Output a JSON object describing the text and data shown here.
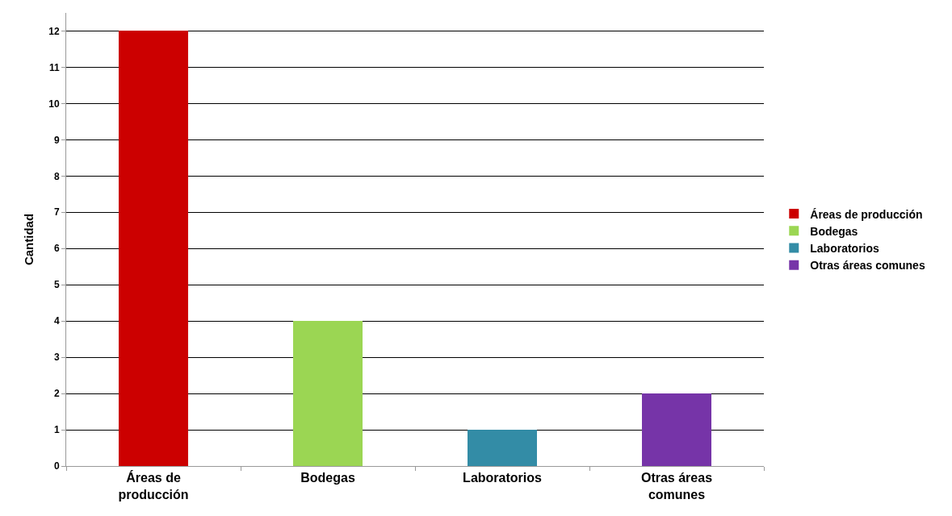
{
  "chart_data": {
    "type": "bar",
    "ylabel": "Cantidad",
    "categories": [
      "Áreas de producción",
      "Bodegas",
      "Laboratorios",
      "Otras áreas comunes"
    ],
    "series": [
      {
        "name": "Áreas de producción",
        "color": "#cc0000",
        "values": [
          12,
          null,
          null,
          null
        ]
      },
      {
        "name": "Bodegas",
        "color": "#9bd653",
        "values": [
          null,
          4,
          null,
          null
        ]
      },
      {
        "name": "Laboratorios",
        "color": "#338ca6",
        "values": [
          null,
          null,
          1,
          null
        ]
      },
      {
        "name": "Otras áreas comunes",
        "color": "#7634a8",
        "values": [
          null,
          null,
          null,
          2
        ]
      }
    ],
    "stacked": true,
    "ylim": [
      0,
      12.5
    ],
    "yticks": [
      0,
      1,
      2,
      3,
      4,
      5,
      6,
      7,
      8,
      9,
      10,
      11,
      12
    ],
    "grid": "y",
    "legend": "right"
  }
}
